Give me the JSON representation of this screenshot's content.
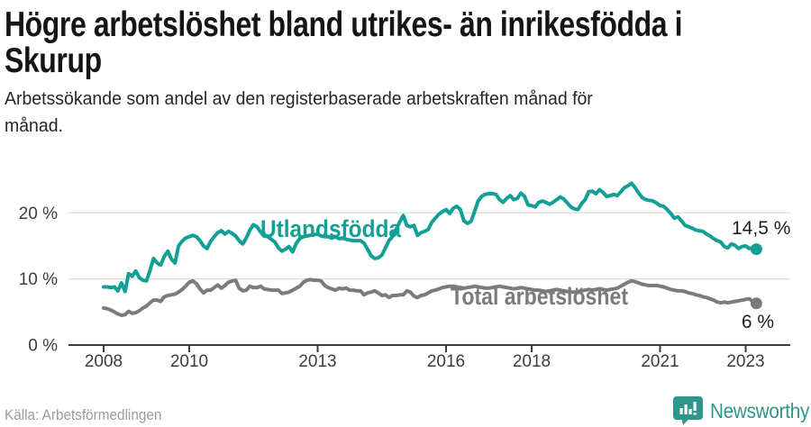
{
  "header": {
    "title_lines": [
      "Högre arbetslöshet bland utrikes- än inrikesfödda i",
      "Skurup"
    ],
    "subtitle_lines": [
      "Arbetssökande som andel av den registerbaserade arbetskraften månad för",
      "månad."
    ]
  },
  "footer": {
    "source": "Källa: Arbetsförmedlingen",
    "brand": "Newsworthy",
    "brand_icon": "newsworthy-bar-chart-bubble-icon"
  },
  "colors": {
    "series_foreign": "#12a096",
    "series_total": "#7b7b7b",
    "grid": "#dedede",
    "axis": "#3c3c3c",
    "tick_text": "#3d3d3d",
    "end_label_text": "#1f1f1f",
    "brand_teal": "#2f968b"
  },
  "chart_data": {
    "type": "line",
    "title": "Högre arbetslöshet bland utrikes- än inrikesfödda i Skurup",
    "ylabel": "Arbetssökande som andel av den registerbaserade arbetskraften",
    "unit": "%",
    "x_start": "2008-01",
    "x_end": "2023-04",
    "points_per_year": 12,
    "ylim": [
      0,
      27
    ],
    "grid": true,
    "legend_position": "inline-labels",
    "y_ticks": [
      {
        "value": 0,
        "label": "0 %"
      },
      {
        "value": 10,
        "label": "10 %"
      },
      {
        "value": 20,
        "label": "20 %"
      }
    ],
    "x_ticks": [
      {
        "year": 2008,
        "label": "2008"
      },
      {
        "year": 2010,
        "label": "2010"
      },
      {
        "year": 2013,
        "label": "2013"
      },
      {
        "year": 2016,
        "label": "2016"
      },
      {
        "year": 2018,
        "label": "2018"
      },
      {
        "year": 2021,
        "label": "2021"
      },
      {
        "year": 2023,
        "label": "2023"
      }
    ],
    "series": [
      {
        "name": "Utlandsfödda",
        "color": "#12a096",
        "end_label": "14,5 %",
        "end_value": 14.5,
        "values": [
          8.8,
          8.8,
          8.7,
          8.8,
          8.2,
          9.4,
          8.1,
          10.8,
          10.4,
          11.2,
          10.2,
          9.8,
          9.7,
          11.3,
          13.1,
          12.4,
          12.1,
          13.4,
          14.2,
          13.0,
          12.4,
          15.0,
          15.7,
          16.2,
          16.4,
          16.6,
          16.4,
          15.8,
          15.0,
          14.6,
          15.7,
          16.4,
          17.0,
          17.3,
          16.8,
          17.2,
          16.9,
          16.5,
          15.8,
          15.3,
          16.2,
          17.4,
          18.2,
          17.9,
          17.1,
          16.5,
          16.4,
          16.0,
          15.6,
          14.7,
          14.2,
          14.5,
          14.9,
          14.1,
          15.4,
          16.1,
          16.4,
          16.5,
          16.6,
          16.7,
          16.8,
          16.5,
          16.4,
          16.4,
          16.2,
          16.4,
          16.1,
          16.2,
          16.0,
          15.9,
          15.8,
          15.8,
          15.8,
          15.4,
          14.5,
          13.5,
          13.1,
          13.2,
          13.6,
          14.7,
          15.8,
          16.4,
          17.5,
          18.6,
          19.6,
          18.1,
          17.9,
          18.1,
          16.6,
          17.0,
          17.2,
          17.5,
          18.6,
          19.2,
          19.8,
          20.2,
          20.5,
          19.9,
          20.7,
          21.0,
          20.5,
          18.8,
          18.4,
          18.7,
          20.2,
          21.8,
          22.5,
          22.8,
          22.9,
          22.9,
          22.8,
          22.0,
          21.6,
          22.2,
          22.6,
          22.0,
          22.2,
          23.0,
          22.5,
          21.2,
          21.1,
          20.9,
          21.6,
          21.8,
          21.6,
          21.3,
          21.6,
          22.0,
          22.4,
          22.1,
          21.5,
          20.9,
          20.6,
          20.5,
          21.4,
          22.0,
          23.2,
          23.3,
          22.9,
          23.5,
          23.1,
          22.5,
          22.6,
          22.8,
          22.6,
          23.2,
          23.8,
          24.1,
          24.5,
          23.8,
          23.0,
          22.3,
          22.0,
          21.9,
          21.8,
          21.5,
          21.1,
          21.0,
          20.5,
          19.9,
          19.2,
          19.4,
          18.8,
          18.1,
          17.9,
          17.7,
          17.4,
          17.3,
          17.2,
          16.8,
          16.5,
          16.1,
          15.8,
          15.6,
          14.9,
          14.7,
          15.3,
          15.1,
          14.6,
          14.9,
          15.0,
          14.6,
          14.7,
          14.5
        ]
      },
      {
        "name": "Total arbetslöshet",
        "color": "#7b7b7b",
        "end_label": "6 %",
        "end_value": 6.3,
        "values": [
          5.6,
          5.5,
          5.3,
          5.0,
          4.7,
          4.5,
          4.6,
          5.1,
          4.8,
          4.9,
          5.2,
          5.6,
          5.9,
          6.4,
          6.8,
          6.8,
          6.6,
          7.3,
          7.5,
          7.6,
          7.7,
          8.0,
          8.4,
          8.9,
          9.5,
          9.7,
          9.3,
          8.5,
          7.9,
          8.3,
          8.3,
          8.7,
          9.1,
          8.6,
          9.0,
          9.5,
          9.7,
          9.8,
          8.6,
          8.2,
          8.3,
          8.9,
          8.7,
          8.7,
          8.9,
          8.5,
          8.4,
          8.3,
          8.3,
          8.3,
          7.8,
          7.9,
          8.0,
          8.3,
          8.6,
          8.9,
          9.5,
          9.8,
          9.9,
          9.8,
          9.8,
          9.7,
          9.0,
          8.7,
          8.5,
          8.3,
          8.6,
          8.5,
          8.6,
          8.3,
          8.3,
          8.2,
          8.2,
          7.6,
          7.9,
          8.0,
          8.2,
          7.9,
          7.5,
          7.6,
          7.2,
          7.5,
          7.5,
          7.6,
          7.6,
          8.2,
          8.0,
          7.4,
          7.2,
          7.5,
          7.6,
          7.9,
          8.2,
          8.3,
          8.5,
          8.7,
          8.8,
          8.9,
          8.9,
          8.8,
          8.7,
          8.6,
          8.7,
          8.8,
          8.9,
          8.8,
          8.7,
          8.6,
          8.6,
          8.7,
          8.8,
          8.9,
          8.8,
          8.7,
          8.6,
          8.5,
          8.6,
          8.7,
          8.6,
          8.5,
          8.4,
          8.3,
          8.3,
          8.2,
          8.1,
          8.2,
          8.3,
          8.4,
          8.3,
          8.2,
          8.1,
          8.0,
          8.0,
          8.1,
          8.2,
          8.3,
          8.4,
          8.3,
          8.4,
          8.5,
          8.4,
          8.3,
          8.4,
          8.5,
          8.6,
          8.9,
          9.2,
          9.5,
          9.7,
          9.6,
          9.4,
          9.2,
          9.1,
          9.0,
          9.0,
          9.0,
          8.9,
          8.8,
          8.6,
          8.4,
          8.3,
          8.2,
          8.2,
          8.1,
          7.9,
          7.8,
          7.6,
          7.5,
          7.3,
          7.2,
          7.0,
          6.8,
          6.5,
          6.4,
          6.5,
          6.4,
          6.5,
          6.6,
          6.7,
          6.8,
          6.9,
          7.0,
          6.6,
          6.3
        ]
      }
    ]
  }
}
